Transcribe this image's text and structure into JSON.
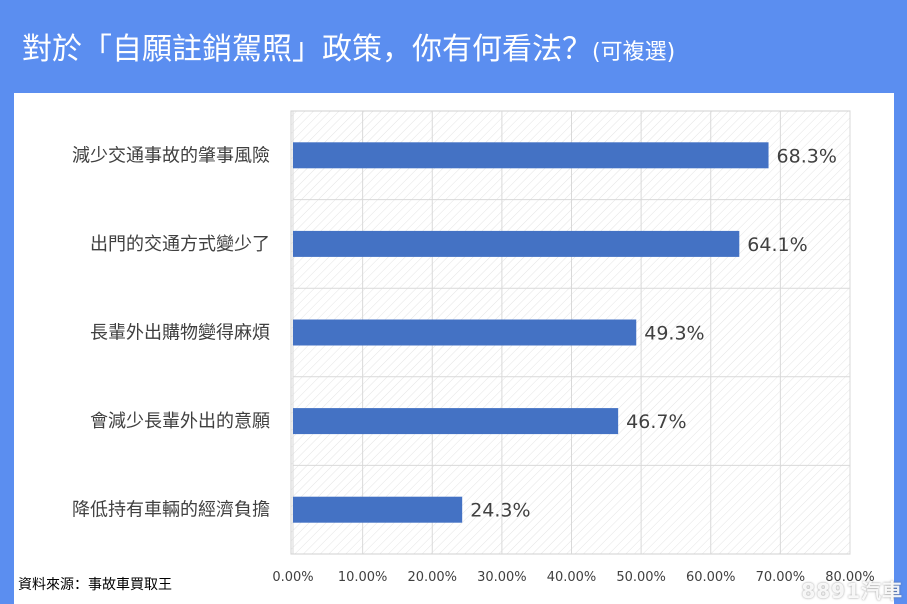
{
  "title": {
    "main": "對於「自願註銷駕照」政策，你有何看法？",
    "suffix": "(可複選)"
  },
  "source": "資料來源：事故車買取王",
  "watermark": "8891汽車",
  "colors": {
    "header": "#5b8ef0",
    "bar": "#4472c4",
    "grid": "#d9d9d9"
  },
  "chart_data": {
    "type": "bar",
    "orientation": "horizontal",
    "categories": [
      "減少交通事故的肇事風險",
      "出門的交通方式變少了",
      "長輩外出購物變得麻煩",
      "會減少長輩外出的意願",
      "降低持有車輛的經濟負擔"
    ],
    "values": [
      68.3,
      64.1,
      49.3,
      46.7,
      24.3
    ],
    "value_labels": [
      "68.3%",
      "64.1%",
      "49.3%",
      "46.7%",
      "24.3%"
    ],
    "xticks": [
      "0.00%",
      "10.00%",
      "20.00%",
      "30.00%",
      "40.00%",
      "50.00%",
      "60.00%",
      "70.00%",
      "80.00%"
    ],
    "xlim": [
      0,
      80
    ],
    "grid": true
  }
}
